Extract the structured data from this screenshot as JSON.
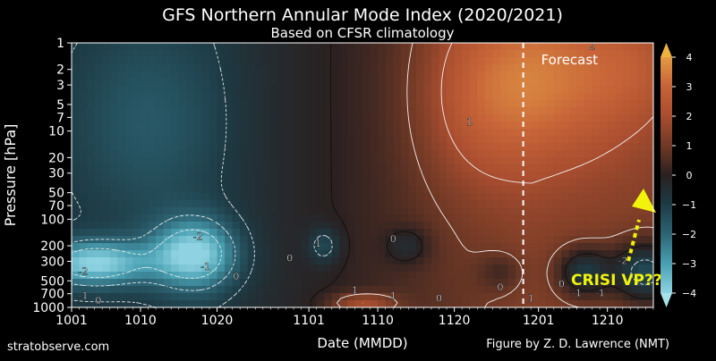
{
  "chart_data": {
    "type": "heatmap",
    "title": "GFS Northern Annular Mode Index (2020/2021)",
    "subtitle": "Based on CFSR climatology",
    "xlabel": "Date (MMDD)",
    "ylabel": "Pressure [hPa]",
    "x_tick_labels": [
      "1001",
      "1010",
      "1020",
      "1101",
      "1110",
      "1120",
      "1201",
      "1210"
    ],
    "x_tick_days": [
      0,
      9,
      19,
      31,
      40,
      50,
      61,
      70
    ],
    "xlim": [
      0,
      76
    ],
    "y_tick_labels": [
      "1",
      "2",
      "3",
      "5",
      "7",
      "10",
      "20",
      "30",
      "50",
      "70",
      "100",
      "200",
      "300",
      "500",
      "700",
      "1000"
    ],
    "y_tick_values": [
      1,
      2,
      3,
      5,
      7,
      10,
      20,
      30,
      50,
      70,
      100,
      200,
      300,
      500,
      700,
      1000
    ],
    "ylim": [
      1,
      1000
    ],
    "y_scale": "log",
    "y_inverted": true,
    "colorbar": {
      "range": [
        -4,
        4
      ],
      "tick_labels": [
        "4",
        "3",
        "2",
        "1",
        "0",
        "−1",
        "−2",
        "−3",
        "−4"
      ],
      "tick_values": [
        4,
        3,
        2,
        1,
        0,
        -1,
        -2,
        -3,
        -4
      ]
    },
    "forecast_start_day": 59,
    "annotations": {
      "forecast": "Forecast",
      "crisis": "CRISI VP??"
    },
    "contour_labels": [
      {
        "text": "-2",
        "x": 1.5,
        "p": 400
      },
      {
        "text": "-1",
        "x": 1.5,
        "p": 750
      },
      {
        "text": "0",
        "x": 3.5,
        "p": 850
      },
      {
        "text": "-2",
        "x": 16.5,
        "p": 160
      },
      {
        "text": "-1",
        "x": 17.5,
        "p": 350
      },
      {
        "text": "0",
        "x": 21.5,
        "p": 450
      },
      {
        "text": "0",
        "x": 28.5,
        "p": 280
      },
      {
        "text": "-1",
        "x": 32,
        "p": 190
      },
      {
        "text": "0",
        "x": 42,
        "p": 170
      },
      {
        "text": "1",
        "x": 37,
        "p": 650
      },
      {
        "text": "1",
        "x": 42,
        "p": 750
      },
      {
        "text": "0",
        "x": 48,
        "p": 800
      },
      {
        "text": "0",
        "x": 56,
        "p": 600
      },
      {
        "text": "1",
        "x": 60,
        "p": 800
      },
      {
        "text": "0",
        "x": 64,
        "p": 550
      },
      {
        "text": "-1",
        "x": 66,
        "p": 700
      },
      {
        "text": "-1",
        "x": 69,
        "p": 700
      },
      {
        "text": "-2",
        "x": 72,
        "p": 300
      },
      {
        "text": "1",
        "x": 52,
        "p": 8
      },
      {
        "text": "2",
        "x": 68,
        "p": 1.1
      }
    ],
    "credits": {
      "left": "stratobserve.com",
      "right": "Figure by Z. D. Lawrence (NMT)"
    }
  }
}
